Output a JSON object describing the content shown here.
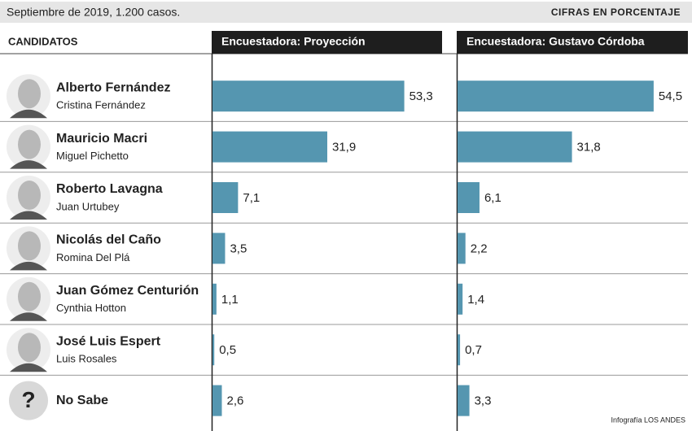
{
  "subtitle": "Septiembre de 2019, 1.200 casos.",
  "units_note": "CIFRAS EN PORCENTAJE",
  "column_header": "CANDIDATOS",
  "credit": "Infografía LOS ANDES",
  "candidates": [
    {
      "name": "Alberto Fernández",
      "running_mate": "Cristina Fernández"
    },
    {
      "name": "Mauricio Macri",
      "running_mate": "Miguel Pichetto"
    },
    {
      "name": "Roberto Lavagna",
      "running_mate": "Juan Urtubey"
    },
    {
      "name": "Nicolás del Caño",
      "running_mate": "Romina Del Plá"
    },
    {
      "name": "Juan Gómez Centurión",
      "running_mate": "Cynthia Hotton"
    },
    {
      "name": "José Luis Espert",
      "running_mate": "Luis Rosales"
    },
    {
      "name": "No Sabe",
      "icon": "?"
    }
  ],
  "chart_data": [
    {
      "type": "bar",
      "title": "Encuestadora: Proyección",
      "color": "#5596b0",
      "values": [
        53.3,
        31.9,
        7.1,
        3.5,
        1.1,
        0.5,
        2.6
      ],
      "value_labels": [
        "53,3",
        "31,9",
        "7,1",
        "3,5",
        "1,1",
        "0,5",
        "2,6"
      ]
    },
    {
      "type": "bar",
      "title": "Encuestadora: Gustavo Córdoba",
      "color": "#5596b0",
      "values": [
        54.5,
        31.8,
        6.1,
        2.2,
        1.4,
        0.7,
        3.3
      ],
      "value_labels": [
        "54,5",
        "31,8",
        "6,1",
        "2,2",
        "1,4",
        "0,7",
        "3,3"
      ]
    }
  ]
}
